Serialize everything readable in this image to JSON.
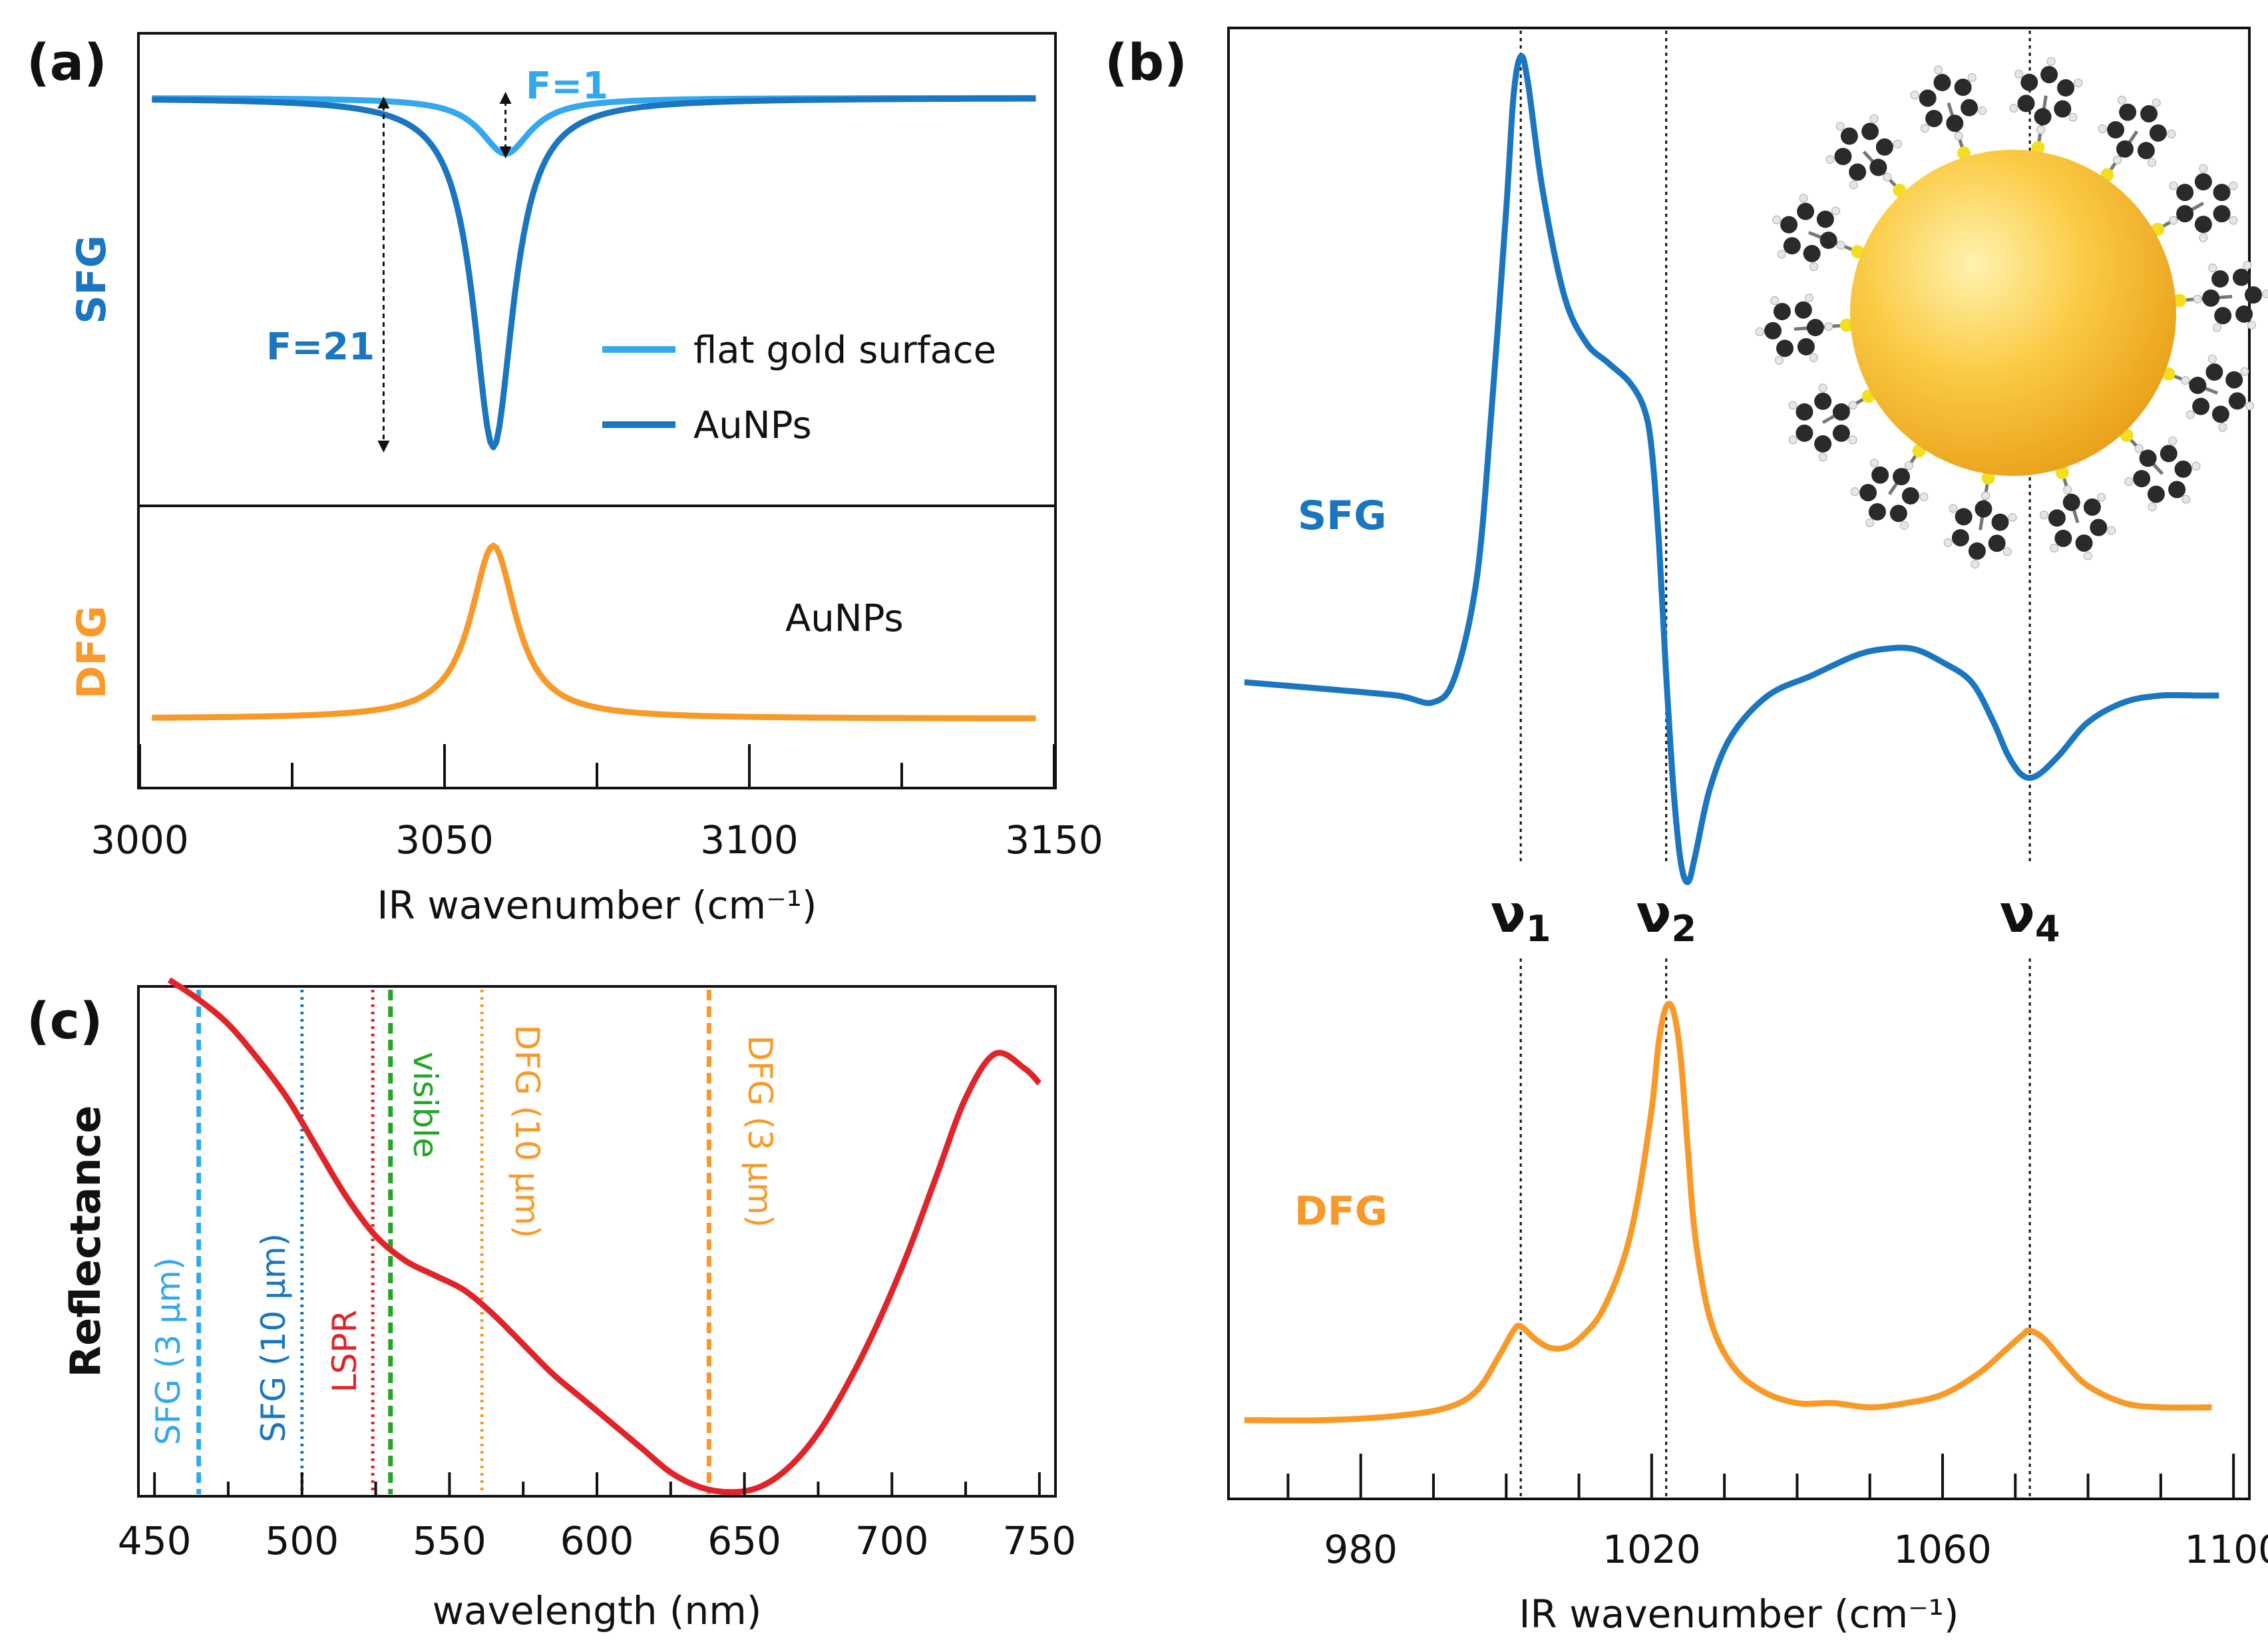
{
  "colors": {
    "light_blue": "#33a8ee",
    "dark_blue": "#1a76c0",
    "orange": "#f79a2a",
    "red": "#e0252a",
    "green": "#22a528",
    "gold_sphere": "#f9c12e",
    "axis": "#111111"
  },
  "chart_data": [
    {
      "id": "a",
      "panel_label": "(a)",
      "type": "line",
      "xlabel": "IR wavenumber (cm⁻¹)",
      "xlim": [
        3000,
        3150
      ],
      "xticks": [
        "3000",
        "3050",
        "3100",
        "3150"
      ],
      "top": {
        "ylabel": "SFG",
        "legend_position": "center-right",
        "series": [
          {
            "name": "flat gold surface",
            "color": "#33a8ee",
            "peak_x": 3060,
            "baseline": 1.0,
            "dip_depth": 0.16,
            "width": 5
          },
          {
            "name": "AuNPs",
            "color": "#1a76c0",
            "peak_x": 3058,
            "baseline": 1.0,
            "dip_depth": 1.0,
            "width": 4
          }
        ],
        "annotations": [
          "F=1",
          "F=21"
        ]
      },
      "bottom": {
        "ylabel": "DFG",
        "label": "AuNPs",
        "series": [
          {
            "name": "AuNPs",
            "color": "#f79a2a",
            "peak_x": 3058,
            "baseline": 0.0,
            "peak_height": 1.0,
            "width": 4.5
          }
        ]
      }
    },
    {
      "id": "b",
      "panel_label": "(b)",
      "type": "line",
      "xlabel": "IR wavenumber (cm⁻¹)",
      "xlim": [
        962,
        1102
      ],
      "xticks": [
        "980",
        "1020",
        "1060",
        "1100"
      ],
      "mode_lines": [
        {
          "label": "ν",
          "sub": "1",
          "x": 1002
        },
        {
          "label": "ν",
          "sub": "2",
          "x": 1022
        },
        {
          "label": "ν",
          "sub": "4",
          "x": 1072
        }
      ],
      "series": [
        {
          "name": "SFG",
          "color": "#1a76c0",
          "points": [
            [
              964,
              0.04
            ],
            [
              975,
              0.03
            ],
            [
              985,
              0.02
            ],
            [
              990,
              0.01
            ],
            [
              993,
              0.05
            ],
            [
              996,
              0.2
            ],
            [
              998,
              0.45
            ],
            [
              1000,
              0.75
            ],
            [
              1001,
              0.92
            ],
            [
              1002,
              0.98
            ],
            [
              1003,
              0.94
            ],
            [
              1005,
              0.78
            ],
            [
              1008,
              0.62
            ],
            [
              1011,
              0.55
            ],
            [
              1014,
              0.52
            ],
            [
              1017,
              0.49
            ],
            [
              1019,
              0.45
            ],
            [
              1020,
              0.39
            ],
            [
              1021,
              0.25
            ],
            [
              1022,
              0.05
            ],
            [
              1023,
              -0.12
            ],
            [
              1024,
              -0.23
            ],
            [
              1025,
              -0.26
            ],
            [
              1026,
              -0.22
            ],
            [
              1028,
              -0.12
            ],
            [
              1031,
              -0.04
            ],
            [
              1036,
              0.02
            ],
            [
              1042,
              0.05
            ],
            [
              1048,
              0.08
            ],
            [
              1052,
              0.09
            ],
            [
              1056,
              0.09
            ],
            [
              1060,
              0.07
            ],
            [
              1064,
              0.04
            ],
            [
              1067,
              -0.02
            ],
            [
              1069,
              -0.07
            ],
            [
              1071,
              -0.1
            ],
            [
              1073,
              -0.1
            ],
            [
              1076,
              -0.07
            ],
            [
              1080,
              -0.02
            ],
            [
              1085,
              0.01
            ],
            [
              1090,
              0.02
            ],
            [
              1095,
              0.02
            ],
            [
              1098,
              0.02
            ]
          ]
        },
        {
          "name": "DFG",
          "color": "#f79a2a",
          "points": [
            [
              964,
              0.01
            ],
            [
              975,
              0.01
            ],
            [
              985,
              0.02
            ],
            [
              992,
              0.04
            ],
            [
              996,
              0.08
            ],
            [
              999,
              0.16
            ],
            [
              1001,
              0.22
            ],
            [
              1002,
              0.23
            ],
            [
              1004,
              0.2
            ],
            [
              1006,
              0.18
            ],
            [
              1008,
              0.18
            ],
            [
              1010,
              0.2
            ],
            [
              1013,
              0.26
            ],
            [
              1016,
              0.38
            ],
            [
              1018,
              0.52
            ],
            [
              1020,
              0.74
            ],
            [
              1021,
              0.9
            ],
            [
              1022,
              0.98
            ],
            [
              1023,
              0.97
            ],
            [
              1024,
              0.86
            ],
            [
              1025,
              0.64
            ],
            [
              1026,
              0.44
            ],
            [
              1028,
              0.25
            ],
            [
              1031,
              0.14
            ],
            [
              1035,
              0.08
            ],
            [
              1040,
              0.05
            ],
            [
              1045,
              0.05
            ],
            [
              1050,
              0.04
            ],
            [
              1055,
              0.05
            ],
            [
              1060,
              0.07
            ],
            [
              1065,
              0.12
            ],
            [
              1069,
              0.18
            ],
            [
              1071,
              0.21
            ],
            [
              1072,
              0.22
            ],
            [
              1074,
              0.2
            ],
            [
              1077,
              0.14
            ],
            [
              1080,
              0.09
            ],
            [
              1085,
              0.05
            ],
            [
              1090,
              0.04
            ],
            [
              1097,
              0.04
            ]
          ]
        }
      ]
    },
    {
      "id": "c",
      "panel_label": "(c)",
      "type": "line",
      "xlabel": "wavelength (nm)",
      "ylabel": "Reflectance",
      "xlim": [
        445,
        755
      ],
      "xticks": [
        "450",
        "500",
        "550",
        "600",
        "650",
        "700",
        "750"
      ],
      "series": [
        {
          "name": "",
          "color": "#e0252a",
          "points": [
            [
              455,
              0.97
            ],
            [
              465,
              0.93
            ],
            [
              475,
              0.88
            ],
            [
              485,
              0.81
            ],
            [
              495,
              0.73
            ],
            [
              505,
              0.63
            ],
            [
              515,
              0.53
            ],
            [
              525,
              0.45
            ],
            [
              535,
              0.4
            ],
            [
              545,
              0.37
            ],
            [
              555,
              0.34
            ],
            [
              565,
              0.29
            ],
            [
              575,
              0.23
            ],
            [
              585,
              0.17
            ],
            [
              595,
              0.12
            ],
            [
              605,
              0.07
            ],
            [
              615,
              0.02
            ],
            [
              625,
              -0.03
            ],
            [
              635,
              -0.06
            ],
            [
              645,
              -0.07
            ],
            [
              655,
              -0.06
            ],
            [
              665,
              -0.02
            ],
            [
              675,
              0.05
            ],
            [
              685,
              0.15
            ],
            [
              695,
              0.27
            ],
            [
              705,
              0.41
            ],
            [
              715,
              0.57
            ],
            [
              725,
              0.73
            ],
            [
              735,
              0.82
            ],
            [
              745,
              0.79
            ],
            [
              750,
              0.76
            ]
          ]
        }
      ],
      "vlines": [
        {
          "label": "SFG (3 μm)",
          "x": 465,
          "color": "#33a8ee",
          "style": "dashed"
        },
        {
          "label": "SFG (10 μm)",
          "x": 500,
          "color": "#1a76c0",
          "style": "dotted"
        },
        {
          "label": "LSPR",
          "x": 524,
          "color": "#e0252a",
          "style": "dotted"
        },
        {
          "label": "visible",
          "x": 530,
          "color": "#22a528",
          "style": "dashed"
        },
        {
          "label": "DFG (10 μm)",
          "x": 561,
          "color": "#f79a2a",
          "style": "dotted"
        },
        {
          "label": "DFG (3 μm)",
          "x": 638,
          "color": "#f79a2a",
          "style": "dashed"
        }
      ]
    }
  ]
}
